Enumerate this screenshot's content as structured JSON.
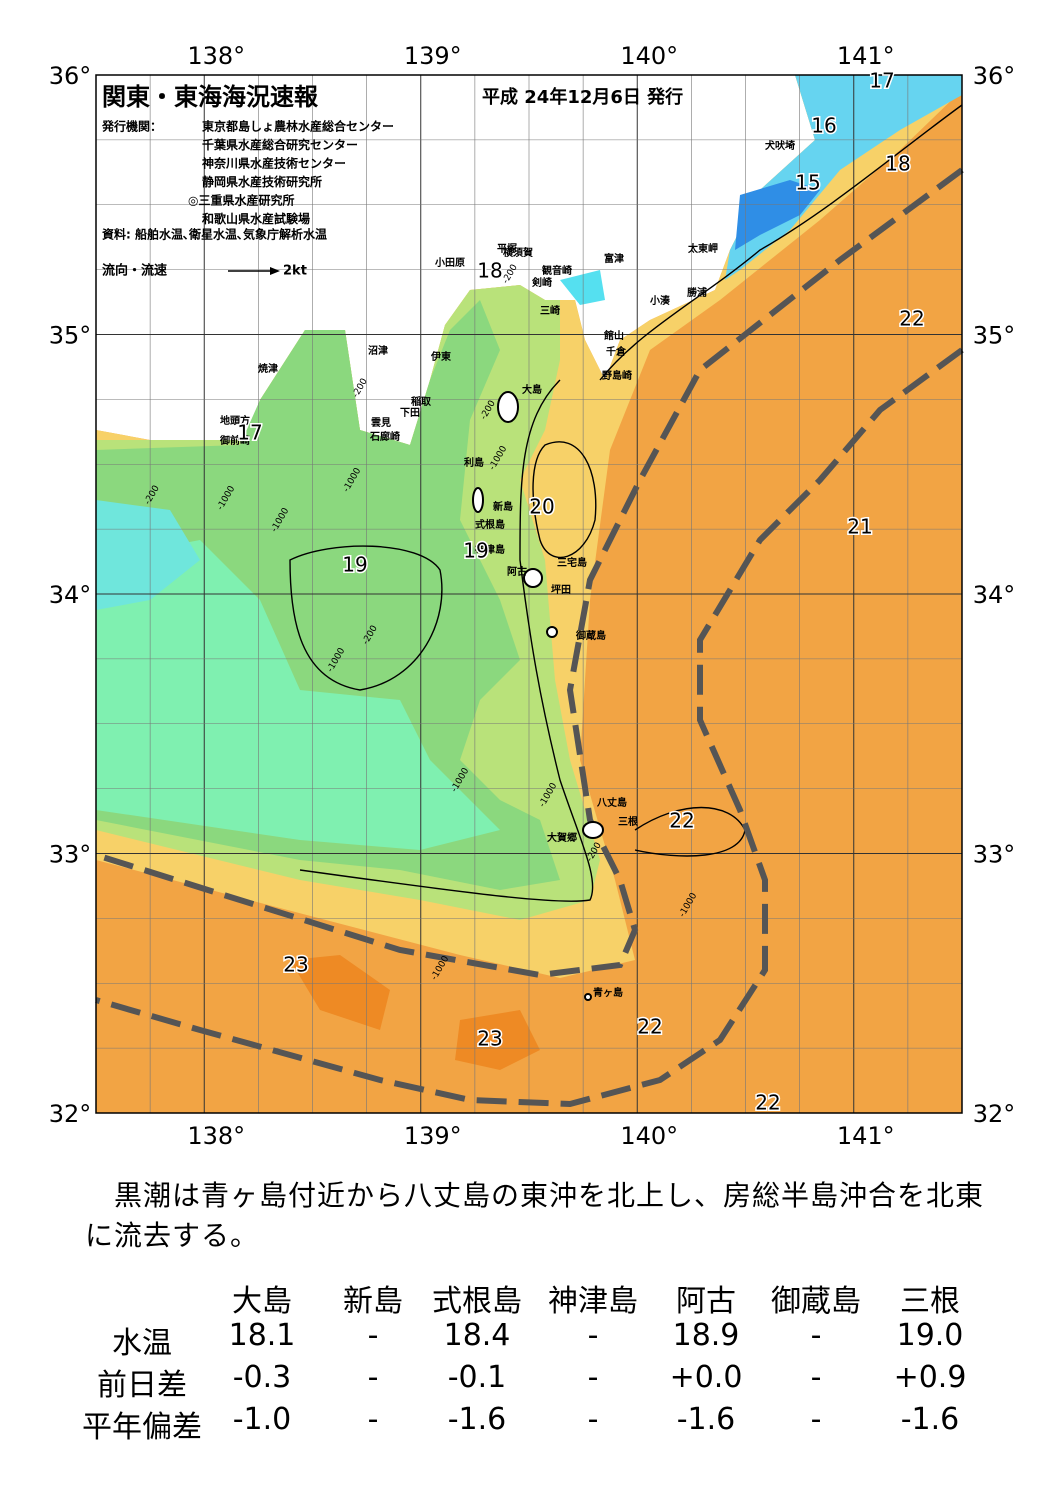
{
  "header": {
    "title": "関東・東海海況速報",
    "date": "平成 24年12月6日 発行"
  },
  "issuers": {
    "label": "発行機関：",
    "list": [
      "東京都島しょ農林水産総合センター",
      "千葉県水産総合研究センター",
      "神奈川県水産技術センター",
      "静岡県水産技術研究所",
      "◎三重県水産研究所",
      "和歌山県水産試験場"
    ],
    "source": "資料: 船舶水温､衛星水温､気象庁解析水温"
  },
  "legend": {
    "label": "流向・流速",
    "speed": "2kt"
  },
  "map": {
    "lon_labels": [
      "138°",
      "139°",
      "140°",
      "141°"
    ],
    "lat_labels": [
      "36°",
      "35°",
      "34°",
      "33°",
      "32°"
    ],
    "places": [
      "犬吠埼",
      "太東岬",
      "勝浦",
      "小湊",
      "富津",
      "館山",
      "千倉",
      "野島崎",
      "横須賀",
      "観音崎",
      "平塚",
      "小田原",
      "剣崎",
      "三崎",
      "沼津",
      "伊東",
      "稲取",
      "下田",
      "雲見",
      "石廊崎",
      "焼津",
      "地頭方",
      "御前崎",
      "大島",
      "利島",
      "新島",
      "式根島",
      "神津島",
      "三宅島",
      "阿古",
      "坪田",
      "御蔵島",
      "八丈島",
      "三根",
      "大賀郷",
      "青ヶ島"
    ],
    "temperatures": [
      "17",
      "16",
      "15",
      "18",
      "18",
      "22",
      "17",
      "20",
      "19",
      "19",
      "21",
      "22",
      "23",
      "23",
      "22",
      "22"
    ],
    "depths": [
      "-200",
      "-1000",
      "-200",
      "-1000",
      "-200",
      "-1000",
      "-200",
      "-1000",
      "-1000",
      "-1000",
      "-1000",
      "-1000",
      "-200",
      "-200",
      "-1000"
    ]
  },
  "description": "　黒潮は青ヶ島付近から八丈島の東沖を北上し、房総半島沖合を北東に流去する。",
  "table": {
    "header": [
      "大島",
      "新島",
      "式根島",
      "神津島",
      "阿古",
      "御蔵島",
      "三根"
    ],
    "rows": [
      {
        "label": "水温",
        "values": [
          "18.1",
          "-",
          "18.4",
          "-",
          "18.9",
          "-",
          "19.0"
        ]
      },
      {
        "label": "前日差",
        "values": [
          "-0.3",
          "-",
          "-0.1",
          "-",
          "+0.0",
          "-",
          "+0.9"
        ]
      },
      {
        "label": "平年偏差",
        "values": [
          "-1.0",
          "-",
          "-1.6",
          "-",
          "-1.6",
          "-",
          "-1.6"
        ]
      }
    ]
  }
}
